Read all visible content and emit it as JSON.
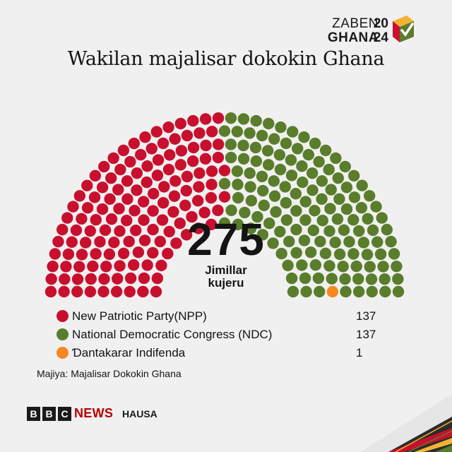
{
  "logo": {
    "word1": "ZABEN",
    "word2": "GHANA",
    "year1": "20",
    "year2": "24",
    "icon": "ballot-box-check-icon"
  },
  "title": "Wakilan majalisar dokokin Ghana",
  "total": {
    "value": "275",
    "label_line1": "Jimillar",
    "label_line2": "kujeru"
  },
  "legend": [
    {
      "label": "New Patriotic Party(NPP)",
      "value": "137",
      "color": "#c8102e"
    },
    {
      "label": "National Democratic Congress (NDC)",
      "value": "137",
      "color": "#5a7d2c"
    },
    {
      "label": "Ɗantakarar Indifenda",
      "value": "1",
      "color": "#f5891f"
    }
  ],
  "source": "Majiya: Majalisar Dokokin Ghana",
  "branding": {
    "letters": [
      "B",
      "B",
      "C"
    ],
    "news": "NEWS",
    "service": "HAUSA"
  },
  "chart_data": {
    "type": "parliament",
    "title": "Wakilan majalisar dokokin Ghana",
    "total_seats": 275,
    "series": [
      {
        "name": "New Patriotic Party(NPP)",
        "values": [
          137
        ],
        "color": "#c8102e"
      },
      {
        "name": "National Democratic Congress (NDC)",
        "values": [
          137
        ],
        "color": "#5a7d2c"
      },
      {
        "name": "Ɗantakarar Indifenda",
        "values": [
          1
        ],
        "color": "#f5891f"
      }
    ]
  }
}
